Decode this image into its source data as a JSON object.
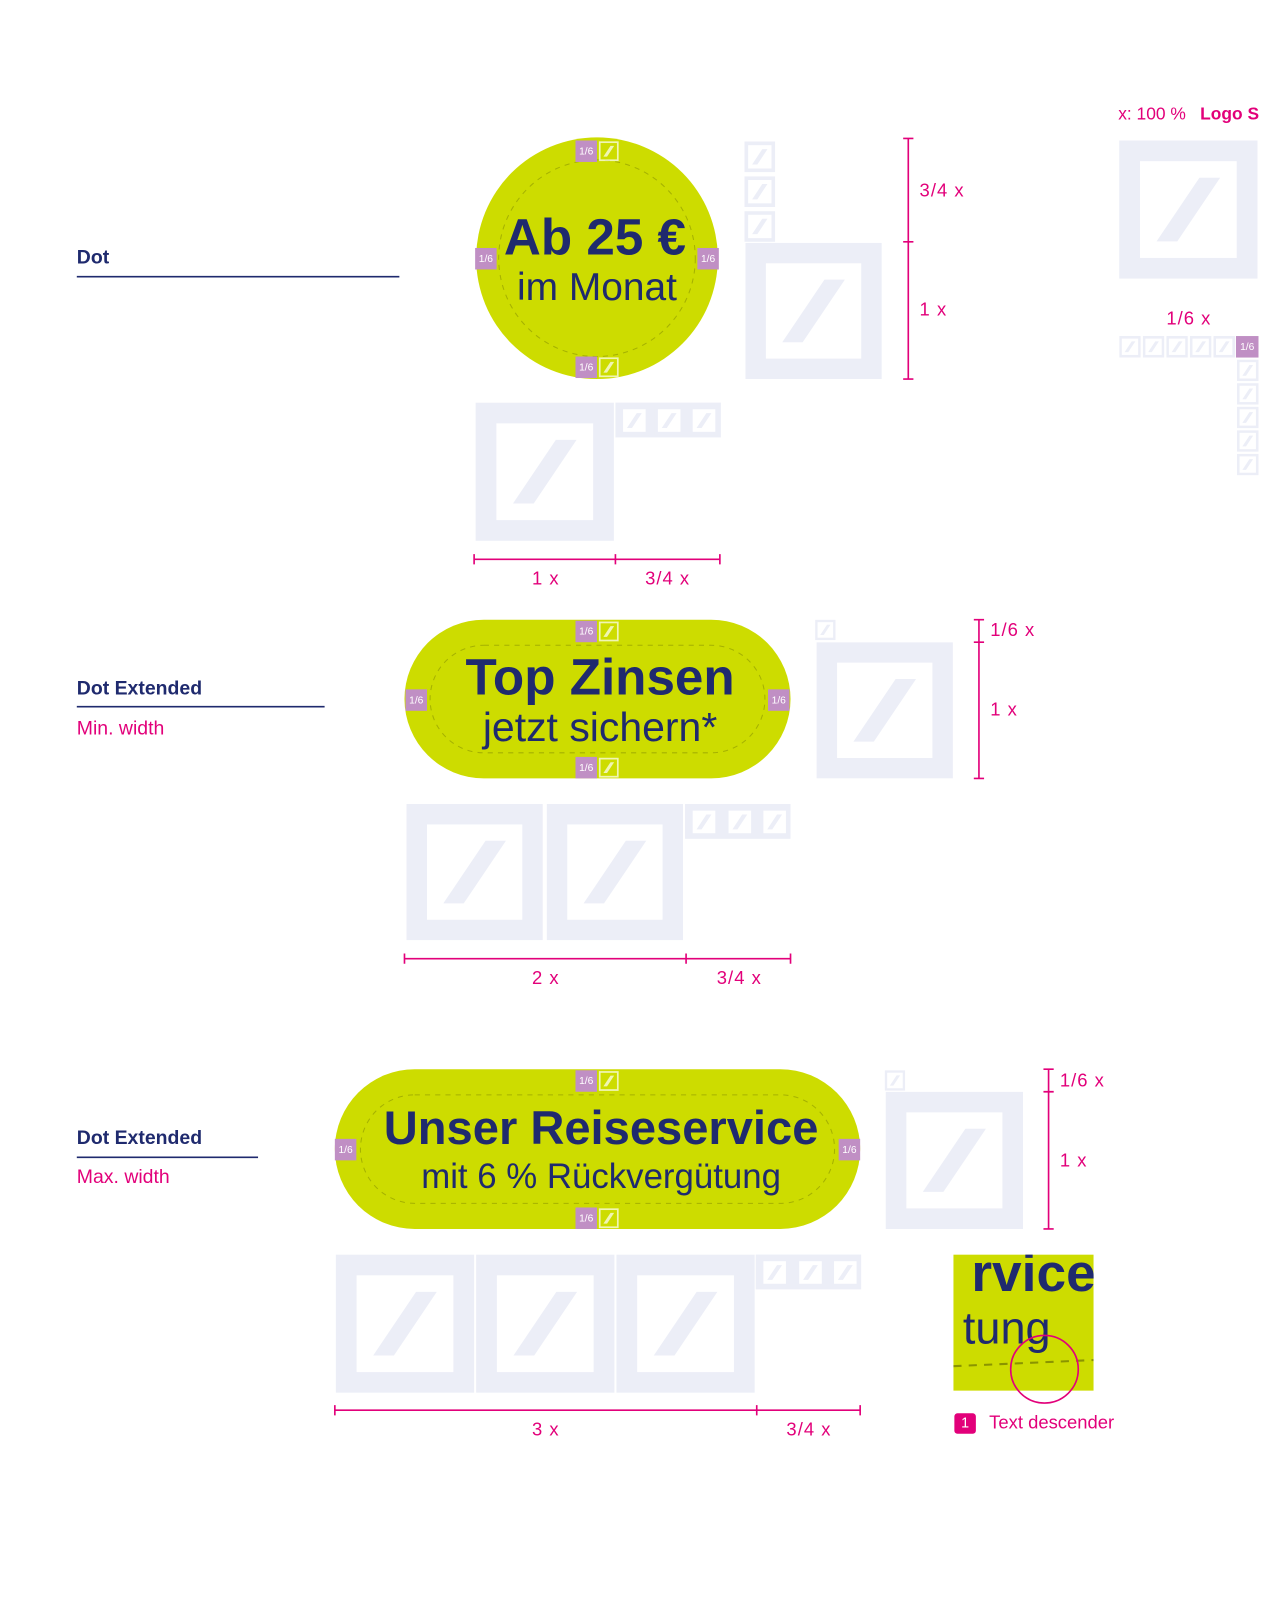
{
  "header": {
    "scale": "x: 100 %",
    "logo_size": "Logo S",
    "logo_spacing": "1/6 x"
  },
  "tag": "1/6",
  "sections": [
    {
      "title": "Dot",
      "badge": [
        "Ab 25 €",
        "im Monat"
      ],
      "side_dims": [
        "3/4 x",
        "1 x"
      ],
      "bottom_dims": [
        "1 x",
        "3/4 x"
      ]
    },
    {
      "title": "Dot Extended",
      "subtitle": "Min. width",
      "badge": [
        "Top Zinsen",
        "jetzt sichern*"
      ],
      "side_dims": [
        "1/6 x",
        "1 x"
      ],
      "bottom_dims": [
        "2 x",
        "3/4 x"
      ]
    },
    {
      "title": "Dot Extended",
      "subtitle": "Max. width",
      "badge": [
        "Unser Reiseservice",
        "mit 6 % Rückvergütung"
      ],
      "side_dims": [
        "1/6 x",
        "1 x"
      ],
      "bottom_dims": [
        "3 x",
        "3/4 x"
      ]
    }
  ],
  "callout": {
    "number": "1",
    "label": "Text descender",
    "zoom": [
      "rvice",
      "tung"
    ]
  }
}
